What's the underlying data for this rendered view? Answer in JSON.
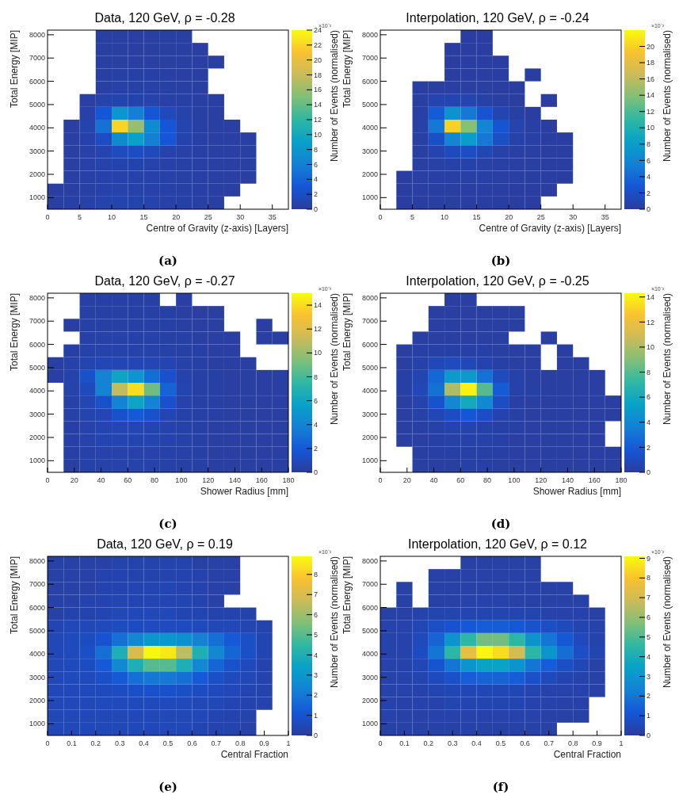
{
  "chart_data": [
    {
      "type": "heatmap",
      "title": "Data, 120 GeV, ρ = -0.28",
      "xlabel": "Centre of Gravity (z-axis) [Layers]",
      "ylabel": "Total Energy [MIP]",
      "clabel": "Number of Events (normalised)",
      "annotations": [
        "×10⁻³",
        "(a)"
      ],
      "xlim": [
        0,
        37.5
      ],
      "xticks": [
        0,
        5,
        10,
        15,
        20,
        25,
        30,
        35
      ],
      "ylim": [
        500,
        8200
      ],
      "yticks": [
        1000,
        2000,
        3000,
        4000,
        5000,
        6000,
        7000,
        8000
      ],
      "clim": [
        0,
        24
      ],
      "cticks": [
        0,
        2,
        4,
        6,
        8,
        10,
        12,
        14,
        16,
        18,
        20,
        22,
        24
      ],
      "cells": [
        [
          null,
          null,
          null,
          0.3,
          0.3,
          0.3,
          0.3,
          0.3,
          0.3,
          null,
          null,
          null,
          null,
          null,
          null
        ],
        [
          null,
          null,
          null,
          0.3,
          0.3,
          0.3,
          0.3,
          0.3,
          0.3,
          0.3,
          null,
          null,
          null,
          null,
          null
        ],
        [
          null,
          null,
          null,
          0.3,
          0.3,
          0.3,
          0.3,
          0.3,
          0.3,
          0.3,
          0.3,
          null,
          null,
          null,
          null
        ],
        [
          null,
          null,
          null,
          0.3,
          0.5,
          0.5,
          0.5,
          0.4,
          0.3,
          0.3,
          null,
          null,
          null,
          null,
          null
        ],
        [
          null,
          null,
          null,
          0.4,
          0.6,
          0.6,
          0.6,
          0.5,
          0.4,
          0.3,
          null,
          null,
          null,
          null,
          null
        ],
        [
          null,
          null,
          0.4,
          0.8,
          0.9,
          0.9,
          0.8,
          0.6,
          0.5,
          0.3,
          0.3,
          null,
          null,
          null,
          null
        ],
        [
          null,
          null,
          0.6,
          3,
          8,
          6,
          3,
          1.5,
          0.8,
          0.4,
          0.3,
          null,
          null,
          null,
          null
        ],
        [
          null,
          0.3,
          0.8,
          5,
          22,
          16,
          7,
          3,
          1,
          0.5,
          0.3,
          0.3,
          null,
          null,
          null
        ],
        [
          null,
          0.3,
          0.7,
          2,
          7,
          9,
          6,
          3,
          0.9,
          0.5,
          0.3,
          0.3,
          0.3,
          null,
          null
        ],
        [
          null,
          0.3,
          0.6,
          1,
          1.8,
          2,
          1.5,
          0.8,
          0.6,
          0.4,
          0.3,
          0.3,
          0.3,
          null,
          null
        ],
        [
          null,
          0.3,
          0.6,
          0.8,
          0.9,
          0.9,
          0.8,
          0.6,
          0.5,
          0.4,
          0.3,
          0.3,
          0.3,
          null,
          null
        ],
        [
          null,
          0.3,
          0.5,
          0.7,
          0.8,
          0.8,
          0.7,
          0.6,
          0.5,
          0.4,
          0.3,
          0.3,
          0.3,
          null,
          null
        ],
        [
          0.3,
          0.3,
          0.5,
          0.7,
          0.8,
          0.8,
          0.7,
          0.6,
          0.5,
          0.4,
          0.3,
          0.3,
          null,
          null,
          null
        ],
        [
          0.3,
          0.4,
          0.6,
          0.8,
          0.9,
          0.9,
          0.8,
          0.6,
          0.5,
          0.4,
          0.3,
          null,
          null,
          null,
          null
        ]
      ]
    },
    {
      "type": "heatmap",
      "title": "Interpolation, 120 GeV, ρ = -0.24",
      "xlabel": "Centre of Gravity (z-axis) [Layers]",
      "ylabel": "Total Energy [MIP]",
      "clabel": "Number of Events (normalised)",
      "annotations": [
        "×10⁻³",
        "(b)"
      ],
      "xlim": [
        0,
        37.5
      ],
      "xticks": [
        0,
        5,
        10,
        15,
        20,
        25,
        30,
        35
      ],
      "ylim": [
        500,
        8200
      ],
      "yticks": [
        1000,
        2000,
        3000,
        4000,
        5000,
        6000,
        7000,
        8000
      ],
      "clim": [
        0,
        22
      ],
      "cticks": [
        0,
        2,
        4,
        6,
        8,
        10,
        12,
        14,
        16,
        18,
        20
      ],
      "cells": [
        [
          null,
          null,
          null,
          null,
          null,
          0.2,
          0.2,
          null,
          null,
          null,
          null,
          null,
          null,
          null,
          null
        ],
        [
          null,
          null,
          null,
          null,
          0.2,
          0.2,
          0.2,
          null,
          null,
          null,
          null,
          null,
          null,
          null,
          null
        ],
        [
          null,
          null,
          null,
          null,
          0.2,
          0.2,
          0.2,
          0.2,
          null,
          null,
          null,
          null,
          null,
          null,
          null
        ],
        [
          null,
          null,
          null,
          null,
          0.2,
          0.2,
          0.2,
          0.2,
          null,
          0.2,
          null,
          null,
          null,
          null,
          null
        ],
        [
          null,
          null,
          0.2,
          0.3,
          0.3,
          0.3,
          0.3,
          0.2,
          0.2,
          null,
          null,
          null,
          null,
          null,
          null
        ],
        [
          null,
          null,
          0.3,
          0.8,
          1,
          0.8,
          0.5,
          0.3,
          0.2,
          null,
          0.2,
          null,
          null,
          null,
          null
        ],
        [
          null,
          null,
          0.4,
          3,
          7,
          5,
          2.5,
          1,
          0.4,
          0.2,
          null,
          null,
          null,
          null,
          null
        ],
        [
          null,
          null,
          0.5,
          5,
          20,
          14,
          6,
          2.5,
          0.8,
          0.4,
          0.2,
          null,
          null,
          null,
          null
        ],
        [
          null,
          null,
          0.4,
          2,
          6,
          8,
          5,
          2,
          0.6,
          0.4,
          0.2,
          0.2,
          null,
          null,
          null
        ],
        [
          null,
          null,
          0.3,
          0.8,
          1.5,
          1.8,
          1.2,
          0.6,
          0.4,
          0.3,
          0.2,
          0.2,
          null,
          null,
          null
        ],
        [
          null,
          null,
          0.3,
          0.5,
          0.6,
          0.6,
          0.5,
          0.4,
          0.3,
          0.3,
          0.2,
          0.2,
          null,
          null,
          null
        ],
        [
          null,
          0.2,
          0.3,
          0.4,
          0.4,
          0.4,
          0.4,
          0.3,
          0.3,
          0.2,
          0.2,
          0.2,
          null,
          null,
          null
        ],
        [
          null,
          0.2,
          0.3,
          0.3,
          0.3,
          0.3,
          0.3,
          0.3,
          0.2,
          0.2,
          0.2,
          null,
          null,
          null,
          null
        ],
        [
          null,
          0.2,
          0.2,
          0.3,
          0.3,
          0.2,
          0.2,
          0.2,
          0.2,
          0.2,
          null,
          null,
          null,
          null,
          null
        ]
      ]
    },
    {
      "type": "heatmap",
      "title": "Data, 120 GeV, ρ = -0.27",
      "xlabel": "Shower Radius [mm]",
      "ylabel": "Total Energy [MIP]",
      "clabel": "Number of Events (normalised)",
      "annotations": [
        "×10⁻³",
        "(c)"
      ],
      "xlim": [
        0,
        180
      ],
      "xticks": [
        0,
        20,
        40,
        60,
        80,
        100,
        120,
        140,
        160,
        180
      ],
      "ylim": [
        500,
        8200
      ],
      "yticks": [
        1000,
        2000,
        3000,
        4000,
        5000,
        6000,
        7000,
        8000
      ],
      "clim": [
        0,
        15
      ],
      "cticks": [
        0,
        2,
        4,
        6,
        8,
        10,
        12,
        14
      ],
      "cells": [
        [
          null,
          null,
          0.3,
          0.3,
          0.3,
          0.3,
          0.3,
          null,
          0.2,
          null,
          null,
          null,
          null,
          null,
          null
        ],
        [
          null,
          null,
          0.3,
          0.3,
          0.3,
          0.3,
          0.3,
          0.3,
          0.2,
          0.2,
          0.2,
          null,
          null,
          null,
          null
        ],
        [
          null,
          0.2,
          0.3,
          0.3,
          0.3,
          0.3,
          0.3,
          0.3,
          0.2,
          0.2,
          0.2,
          null,
          null,
          0.2,
          null
        ],
        [
          null,
          null,
          0.3,
          0.4,
          0.4,
          0.4,
          0.4,
          0.3,
          0.3,
          0.2,
          0.2,
          0.2,
          null,
          0.2,
          0.2
        ],
        [
          null,
          0.3,
          0.4,
          0.5,
          0.5,
          0.5,
          0.5,
          0.4,
          0.3,
          0.3,
          0.2,
          0.2,
          null,
          null,
          null
        ],
        [
          0.2,
          0.4,
          0.6,
          0.8,
          0.8,
          0.8,
          0.7,
          0.6,
          0.4,
          0.3,
          0.2,
          0.2,
          0.2,
          null,
          null
        ],
        [
          0.2,
          0.5,
          1.5,
          4,
          6,
          5,
          3,
          1.5,
          0.5,
          0.3,
          0.3,
          0.2,
          0.2,
          0.2,
          0.2
        ],
        [
          null,
          0.5,
          1,
          4,
          11,
          14,
          9,
          2.5,
          0.6,
          0.3,
          0.3,
          0.2,
          0.2,
          0.2,
          0.2
        ],
        [
          null,
          0.4,
          0.7,
          1.5,
          4,
          6,
          4,
          1.5,
          0.5,
          0.3,
          0.3,
          0.2,
          0.2,
          0.2,
          0.2
        ],
        [
          null,
          0.4,
          0.6,
          0.8,
          1.5,
          2,
          1.5,
          0.7,
          0.4,
          0.3,
          0.3,
          0.2,
          0.2,
          0.2,
          0.2
        ],
        [
          null,
          0.3,
          0.5,
          0.6,
          0.7,
          0.7,
          0.6,
          0.5,
          0.4,
          0.3,
          0.2,
          0.2,
          0.2,
          0.2,
          0.2
        ],
        [
          null,
          0.3,
          0.5,
          0.6,
          0.6,
          0.6,
          0.6,
          0.5,
          0.4,
          0.3,
          0.2,
          0.2,
          0.2,
          0.2,
          0.2
        ],
        [
          null,
          0.3,
          0.4,
          0.5,
          0.5,
          0.5,
          0.5,
          0.4,
          0.4,
          0.3,
          0.2,
          0.2,
          0.2,
          0.2,
          0.2
        ],
        [
          null,
          0.2,
          0.4,
          0.5,
          0.5,
          0.5,
          0.5,
          0.4,
          0.3,
          0.3,
          0.2,
          0.2,
          0.2,
          0.2,
          0.2
        ]
      ]
    },
    {
      "type": "heatmap",
      "title": "Interpolation, 120 GeV, ρ = -0.25",
      "xlabel": "Shower Radius [mm]",
      "ylabel": "Total Energy [MIP]",
      "clabel": "Number of Events (normalised)",
      "annotations": [
        "×10⁻³",
        "(d)"
      ],
      "xlim": [
        0,
        180
      ],
      "xticks": [
        0,
        20,
        40,
        60,
        80,
        100,
        120,
        140,
        160,
        180
      ],
      "ylim": [
        500,
        8200
      ],
      "yticks": [
        1000,
        2000,
        3000,
        4000,
        5000,
        6000,
        7000,
        8000
      ],
      "clim": [
        0,
        14.3
      ],
      "cticks": [
        0,
        2,
        4,
        6,
        8,
        10,
        12,
        14
      ],
      "cells": [
        [
          null,
          null,
          null,
          null,
          0.2,
          0.2,
          null,
          null,
          null,
          null,
          null,
          null,
          null,
          null,
          null
        ],
        [
          null,
          null,
          null,
          0.2,
          0.2,
          0.2,
          0.2,
          0.2,
          0.2,
          null,
          null,
          null,
          null,
          null,
          null
        ],
        [
          null,
          null,
          null,
          0.2,
          0.2,
          0.2,
          0.2,
          0.2,
          0.2,
          null,
          null,
          null,
          null,
          null,
          null
        ],
        [
          null,
          null,
          0.2,
          0.2,
          0.2,
          0.2,
          0.2,
          0.2,
          null,
          null,
          0.2,
          null,
          null,
          null,
          null
        ],
        [
          null,
          0.2,
          0.3,
          0.3,
          0.3,
          0.3,
          0.3,
          0.2,
          0.2,
          0.2,
          null,
          0.2,
          null,
          null,
          null
        ],
        [
          null,
          0.2,
          0.4,
          0.8,
          1,
          0.8,
          0.5,
          0.3,
          0.2,
          0.2,
          null,
          0.2,
          0.2,
          null,
          null
        ],
        [
          null,
          0.3,
          0.6,
          2.5,
          5,
          5,
          3,
          1,
          0.4,
          0.2,
          0.2,
          0.2,
          0.2,
          0.2,
          null
        ],
        [
          null,
          0.3,
          0.8,
          3,
          10,
          14,
          8,
          2,
          0.4,
          0.3,
          0.2,
          0.2,
          0.2,
          0.2,
          null
        ],
        [
          null,
          0.2,
          0.5,
          1.5,
          4,
          6,
          4,
          1.2,
          0.3,
          0.2,
          0.2,
          0.2,
          0.2,
          0.2,
          0.2
        ],
        [
          null,
          0.2,
          0.4,
          0.7,
          1.2,
          1.8,
          1.2,
          0.5,
          0.3,
          0.2,
          0.2,
          0.2,
          0.2,
          0.2,
          0.2
        ],
        [
          null,
          0.2,
          0.3,
          0.4,
          0.5,
          0.5,
          0.4,
          0.3,
          0.3,
          0.2,
          0.2,
          0.2,
          0.2,
          0.2,
          null
        ],
        [
          null,
          0.2,
          0.2,
          0.3,
          0.4,
          0.4,
          0.4,
          0.3,
          0.2,
          0.2,
          0.2,
          0.2,
          0.2,
          0.2,
          null
        ],
        [
          null,
          null,
          0.2,
          0.3,
          0.3,
          0.3,
          0.3,
          0.3,
          0.2,
          0.2,
          0.2,
          0.2,
          0.2,
          0.2,
          0.2
        ],
        [
          null,
          null,
          0.2,
          0.2,
          0.2,
          0.3,
          0.3,
          0.2,
          0.2,
          0.2,
          0.2,
          0.2,
          0.2,
          0.2,
          0.2
        ]
      ]
    },
    {
      "type": "heatmap",
      "title": "Data, 120 GeV, ρ = 0.19",
      "xlabel": "Central Fraction",
      "ylabel": "Total Energy [MIP]",
      "clabel": "Number of Events (normalised)",
      "annotations": [
        "×10⁻³",
        "(e)"
      ],
      "xlim": [
        0,
        1
      ],
      "xticks": [
        0,
        0.1,
        0.2,
        0.3,
        0.4,
        0.5,
        0.6,
        0.7,
        0.8,
        0.9,
        1
      ],
      "ylim": [
        500,
        8200
      ],
      "yticks": [
        1000,
        2000,
        3000,
        4000,
        5000,
        6000,
        7000,
        8000
      ],
      "clim": [
        0,
        8.9
      ],
      "cticks": [
        0,
        1,
        2,
        3,
        4,
        5,
        6,
        7,
        8
      ],
      "cells": [
        [
          0.2,
          0.2,
          0.2,
          0.2,
          0.3,
          0.3,
          0.3,
          0.3,
          0.3,
          0.2,
          0.2,
          0.2,
          null,
          null,
          null
        ],
        [
          0.2,
          0.2,
          0.2,
          0.3,
          0.3,
          0.3,
          0.3,
          0.3,
          0.3,
          0.3,
          0.2,
          0.2,
          null,
          null,
          null
        ],
        [
          0.2,
          0.2,
          0.2,
          0.3,
          0.3,
          0.4,
          0.4,
          0.4,
          0.3,
          0.3,
          0.2,
          0.2,
          null,
          null,
          null
        ],
        [
          0.2,
          0.2,
          0.3,
          0.3,
          0.4,
          0.4,
          0.4,
          0.4,
          0.4,
          0.3,
          0.2,
          null,
          null,
          null,
          null
        ],
        [
          0.2,
          0.3,
          0.3,
          0.4,
          0.5,
          0.5,
          0.5,
          0.5,
          0.4,
          0.4,
          0.3,
          0.3,
          0.3,
          null,
          null
        ],
        [
          0.4,
          0.5,
          0.5,
          0.6,
          0.7,
          0.7,
          0.7,
          0.7,
          0.7,
          0.6,
          0.5,
          0.5,
          0.4,
          0.3,
          null
        ],
        [
          0.5,
          0.6,
          0.7,
          1,
          1.8,
          2.5,
          3,
          3,
          2.8,
          2.3,
          1.8,
          1.2,
          0.8,
          0.4,
          null
        ],
        [
          0.5,
          0.6,
          0.8,
          1.8,
          4,
          7,
          8.8,
          8.5,
          6.5,
          4,
          2.5,
          1.5,
          0.8,
          0.4,
          null
        ],
        [
          0.5,
          0.6,
          0.7,
          1.2,
          2.5,
          4,
          5,
          5,
          4,
          2.5,
          1.5,
          0.9,
          0.6,
          0.3,
          null
        ],
        [
          0.5,
          0.6,
          0.6,
          0.8,
          1.2,
          1.8,
          2,
          2,
          1.8,
          1.2,
          0.8,
          0.6,
          0.5,
          0.3,
          null
        ],
        [
          0.5,
          0.5,
          0.6,
          0.6,
          0.7,
          0.8,
          0.9,
          0.9,
          0.8,
          0.7,
          0.6,
          0.5,
          0.4,
          0.3,
          null
        ],
        [
          0.5,
          0.5,
          0.5,
          0.6,
          0.6,
          0.6,
          0.6,
          0.6,
          0.6,
          0.5,
          0.5,
          0.4,
          0.3,
          0.3,
          null
        ],
        [
          0.5,
          0.5,
          0.5,
          0.5,
          0.5,
          0.5,
          0.5,
          0.5,
          0.5,
          0.5,
          0.4,
          0.3,
          0.3,
          null,
          null
        ],
        [
          0.5,
          0.5,
          0.5,
          0.5,
          0.5,
          0.5,
          0.5,
          0.5,
          0.5,
          0.4,
          0.3,
          0.3,
          0.2,
          null,
          null
        ]
      ]
    },
    {
      "type": "heatmap",
      "title": "Interpolation, 120 GeV, ρ = 0.12",
      "xlabel": "Central Fraction",
      "ylabel": "Total Energy [MIP]",
      "clabel": "Number of Events (normalised)",
      "annotations": [
        "×10⁻³",
        "(f)"
      ],
      "xlim": [
        0,
        1
      ],
      "xticks": [
        0,
        0.1,
        0.2,
        0.3,
        0.4,
        0.5,
        0.6,
        0.7,
        0.8,
        0.9,
        1
      ],
      "ylim": [
        500,
        8200
      ],
      "yticks": [
        1000,
        2000,
        3000,
        4000,
        5000,
        6000,
        7000,
        8000
      ],
      "clim": [
        0,
        9.1
      ],
      "cticks": [
        0,
        1,
        2,
        3,
        4,
        5,
        6,
        7,
        8,
        9
      ],
      "cells": [
        [
          null,
          null,
          null,
          null,
          null,
          0.2,
          0.2,
          0.2,
          0.2,
          0.2,
          null,
          null,
          null,
          null,
          null
        ],
        [
          null,
          null,
          null,
          0.2,
          0.2,
          0.2,
          0.2,
          0.2,
          0.2,
          0.2,
          null,
          null,
          null,
          null,
          null
        ],
        [
          null,
          0.2,
          null,
          0.2,
          0.2,
          0.2,
          0.2,
          0.2,
          0.2,
          0.2,
          0.2,
          0.2,
          null,
          null,
          null
        ],
        [
          null,
          0.2,
          null,
          0.2,
          0.2,
          0.3,
          0.3,
          0.3,
          0.2,
          0.2,
          0.2,
          0.2,
          0.2,
          null,
          null
        ],
        [
          0.2,
          0.2,
          0.3,
          0.4,
          0.4,
          0.4,
          0.4,
          0.4,
          0.4,
          0.4,
          0.3,
          0.3,
          0.3,
          0.2,
          null
        ],
        [
          0.3,
          0.3,
          0.5,
          0.8,
          1,
          1.2,
          1.3,
          1.3,
          1.2,
          1,
          0.8,
          0.6,
          0.4,
          0.3,
          null
        ],
        [
          0.3,
          0.3,
          0.6,
          1.5,
          3,
          4.5,
          5.5,
          5.5,
          4.5,
          3,
          2,
          1.2,
          0.6,
          0.3,
          null
        ],
        [
          0.3,
          0.3,
          0.7,
          2,
          4.5,
          7.5,
          9,
          8.5,
          7,
          4.5,
          3,
          1.8,
          0.8,
          0.4,
          null
        ],
        [
          0.3,
          0.3,
          0.5,
          1,
          2,
          3,
          3.5,
          3.5,
          3,
          2,
          1.3,
          0.8,
          0.5,
          0.2,
          null
        ],
        [
          0.3,
          0.3,
          0.4,
          0.6,
          0.9,
          1.3,
          1.5,
          1.5,
          1.3,
          0.9,
          0.6,
          0.4,
          0.3,
          0.2,
          null
        ],
        [
          0.3,
          0.3,
          0.3,
          0.4,
          0.5,
          0.5,
          0.5,
          0.5,
          0.5,
          0.4,
          0.3,
          0.3,
          0.3,
          0.2,
          null
        ],
        [
          0.3,
          0.2,
          0.3,
          0.3,
          0.4,
          0.4,
          0.4,
          0.4,
          0.4,
          0.3,
          0.3,
          0.2,
          0.2,
          null,
          null
        ],
        [
          0.3,
          0.2,
          0.2,
          0.3,
          0.3,
          0.3,
          0.3,
          0.3,
          0.3,
          0.3,
          0.2,
          0.2,
          0.2,
          null,
          null
        ],
        [
          0.2,
          0.2,
          0.2,
          0.2,
          0.2,
          0.2,
          0.2,
          0.2,
          0.2,
          0.2,
          0.2,
          null,
          null,
          null,
          null
        ]
      ]
    }
  ]
}
